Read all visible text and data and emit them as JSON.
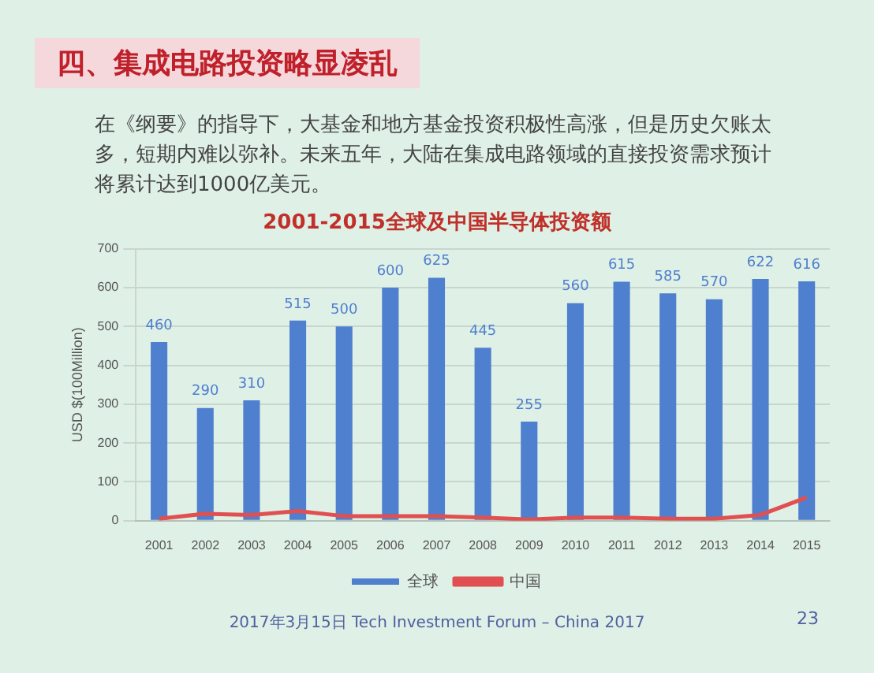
{
  "chart_data": {
    "type": "bar",
    "title": "2001-2015全球及中国半导体投资额",
    "ylabel": "USD $(100Million)",
    "annotations": [
      "四、集成电路投资略显凌乱",
      "在《纲要》的指导下，大基金和地方基金投资积极性高涨，但是历史欠账太多，短期内难以弥补。未来五年，大陆在集成电路领域的直接投资需求预计将累计达到1000亿美元。",
      "2017年3月15日 Tech Investment Forum – China 2017",
      "23"
    ],
    "categories": [
      "2001",
      "2002",
      "2003",
      "2004",
      "2005",
      "2006",
      "2007",
      "2008",
      "2009",
      "2010",
      "2011",
      "2012",
      "2013",
      "2014",
      "2015"
    ],
    "series": [
      {
        "name": "全球",
        "color": "#4f7fcf",
        "values": [
          460,
          290,
          310,
          515,
          500,
          600,
          625,
          445,
          255,
          560,
          615,
          585,
          570,
          622,
          616
        ],
        "value_labels": [
          "460",
          "290",
          "310",
          "515",
          "500",
          "600",
          "625",
          "445",
          "255",
          "560",
          "615",
          "585",
          "570",
          "622",
          "616"
        ]
      },
      {
        "name": "中国",
        "type": "line",
        "color": "#e05050",
        "values": [
          5,
          18,
          15,
          25,
          12,
          12,
          12,
          8,
          3,
          8,
          8,
          5,
          5,
          15,
          60
        ]
      }
    ],
    "ylim": [
      0,
      700
    ],
    "yticks": [
      0,
      100,
      200,
      300,
      400,
      500,
      600,
      700
    ],
    "grid": "y",
    "legend": "bottom",
    "marker": "none",
    "line_style": "solid"
  }
}
